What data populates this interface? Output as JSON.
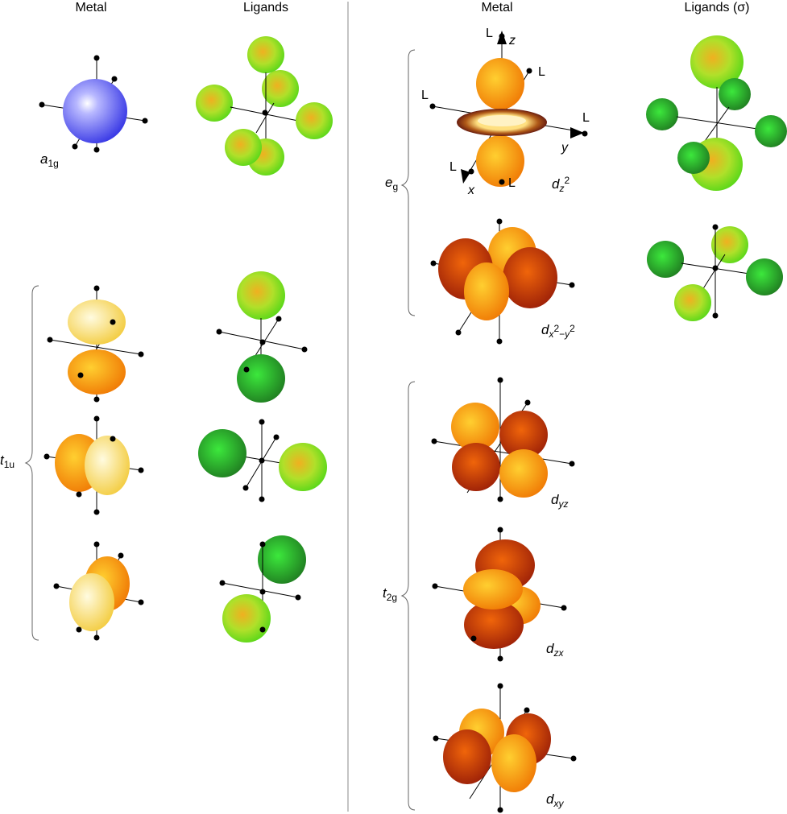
{
  "headers": {
    "left_metal": "Metal",
    "left_ligands": "Ligands",
    "right_metal": "Metal",
    "right_ligands": "Ligands (σ)"
  },
  "groups": {
    "a1g": {
      "symbol": "a",
      "sub": "1g"
    },
    "t1u": {
      "symbol": "t",
      "sub": "1u"
    },
    "eg": {
      "symbol": "e",
      "sub": "g"
    },
    "t2g": {
      "symbol": "t",
      "sub": "2g"
    }
  },
  "orbitals": {
    "dz2": {
      "d": "d",
      "sub": "z",
      "sup": "2"
    },
    "dx2y2": {
      "d": "d",
      "sub": "x",
      "sup1": "2",
      "dash": "−",
      "sub2": "y",
      "sup2": "2"
    },
    "dyz": {
      "d": "d",
      "sub": "yz"
    },
    "dzx": {
      "d": "d",
      "sub": "zx"
    },
    "dxy": {
      "d": "d",
      "sub": "xy"
    }
  },
  "axes_labels": {
    "x": "x",
    "y": "y",
    "z": "z",
    "ligand": "L"
  },
  "colors": {
    "blue": "#5a5af0",
    "orange": "#f79a10",
    "red": "#c8360a",
    "yellow": "#f7de60",
    "green_light": "#8be81e",
    "green_dark": "#2aa820"
  }
}
